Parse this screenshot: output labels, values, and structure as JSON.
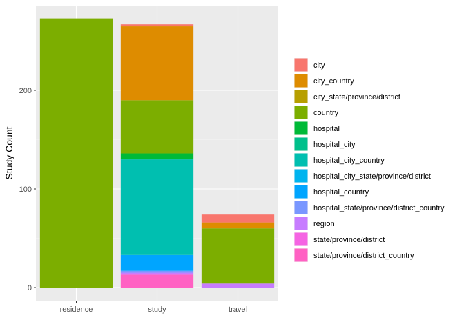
{
  "chart_data": {
    "type": "bar",
    "stacked": true,
    "title": "",
    "xlabel": "",
    "ylabel": "Study Count",
    "categories": [
      "residence",
      "study",
      "travel"
    ],
    "ylim": [
      0,
      273
    ],
    "yticks": [
      0,
      100,
      200
    ],
    "grid": true,
    "legend_position": "right",
    "series": [
      {
        "name": "city",
        "color": "#F8766D",
        "values": [
          0,
          2,
          8
        ]
      },
      {
        "name": "city_country",
        "color": "#DE8C00",
        "values": [
          0,
          75,
          6
        ]
      },
      {
        "name": "city_state/province/district",
        "color": "#B79F00",
        "values": [
          0,
          0,
          0
        ]
      },
      {
        "name": "country",
        "color": "#7CAE00",
        "values": [
          273,
          54,
          56
        ]
      },
      {
        "name": "hospital",
        "color": "#00BA38",
        "values": [
          0,
          6,
          0
        ]
      },
      {
        "name": "hospital_city",
        "color": "#00C08B",
        "values": [
          0,
          0,
          0
        ]
      },
      {
        "name": "hospital_city_country",
        "color": "#00BFB0",
        "values": [
          0,
          97,
          0
        ]
      },
      {
        "name": "hospital_city_state/province/district",
        "color": "#00B4EF",
        "values": [
          0,
          0,
          0
        ]
      },
      {
        "name": "hospital_country",
        "color": "#00A5FF",
        "values": [
          0,
          16,
          0
        ]
      },
      {
        "name": "hospital_state/province/district_country",
        "color": "#7997FF",
        "values": [
          0,
          2,
          0
        ]
      },
      {
        "name": "region",
        "color": "#C77CFF",
        "values": [
          0,
          2,
          4
        ]
      },
      {
        "name": "state/province/district",
        "color": "#F564E3",
        "values": [
          0,
          0,
          0
        ]
      },
      {
        "name": "state/province/district_country",
        "color": "#FF61C3",
        "values": [
          0,
          13,
          0
        ]
      }
    ]
  }
}
